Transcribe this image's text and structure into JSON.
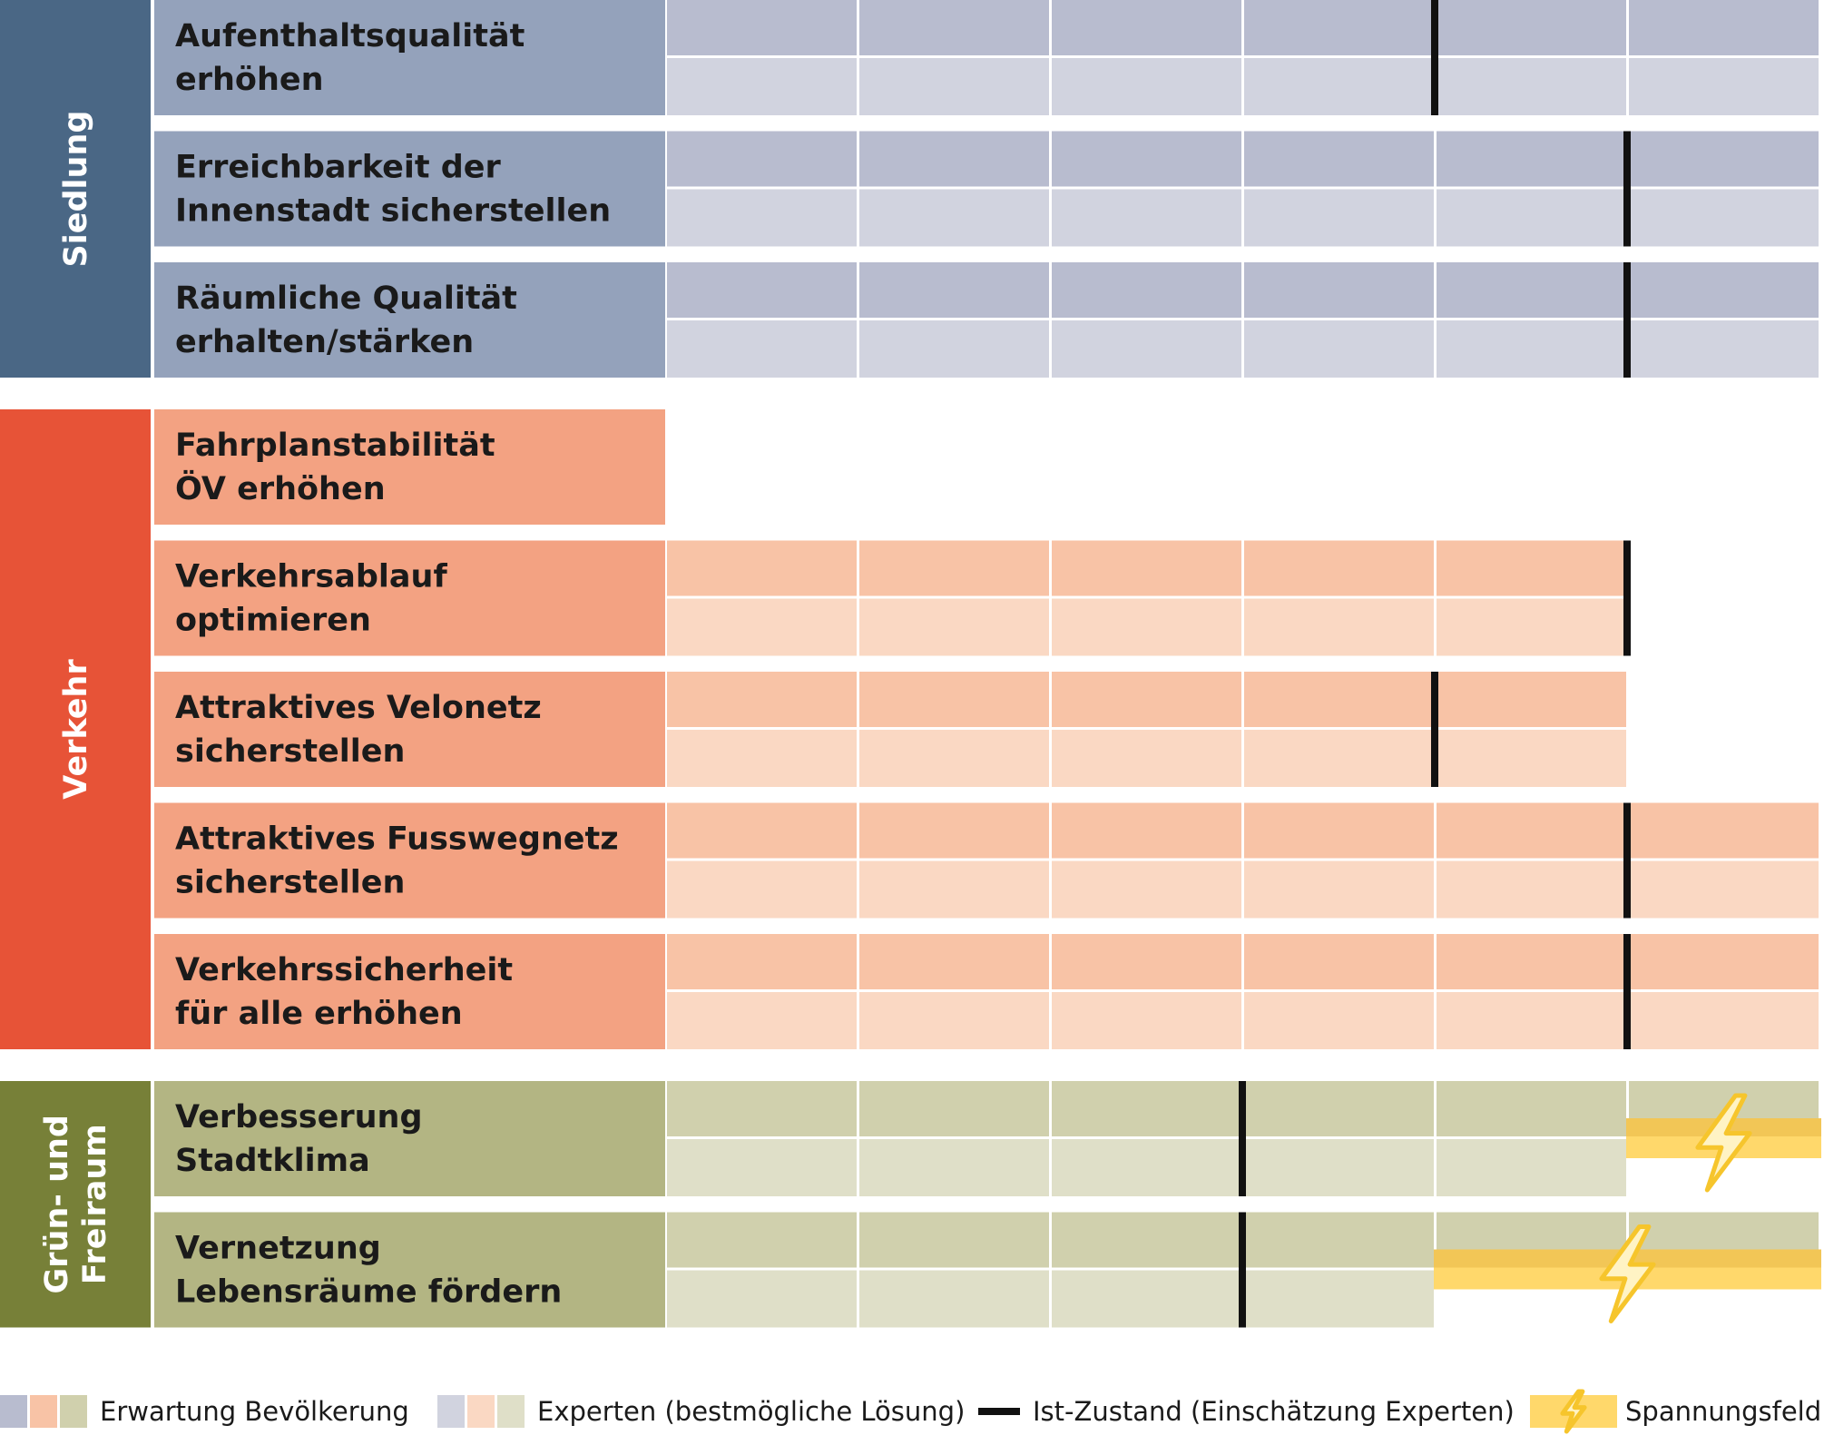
{
  "chart_data": {
    "type": "bar",
    "scale_steps": 6,
    "groups": [
      {
        "category": "Siedlung",
        "category_lines": [
          "Siedlung"
        ],
        "colors": {
          "label_band": "#4a6785",
          "goal_cell": "#94a2bb",
          "expectation": "#b8bccf",
          "expert": "#d1d3df"
        },
        "goals": [
          {
            "label_lines": [
              "Aufenthaltsqualität",
              "erhöhen"
            ],
            "expectation": 6,
            "expert": 6,
            "ist": 4,
            "spannung": null
          },
          {
            "label_lines": [
              "Erreichbarkeit der",
              "Innenstadt sicherstellen"
            ],
            "expectation": 6,
            "expert": 6,
            "ist": 5,
            "spannung": null
          },
          {
            "label_lines": [
              "Räumliche Qualität",
              "erhalten/stärken"
            ],
            "expectation": 6,
            "expert": 6,
            "ist": 5,
            "spannung": null
          }
        ]
      },
      {
        "category": "Verkehr",
        "category_lines": [
          "Verkehr"
        ],
        "colors": {
          "label_band": "#e75337",
          "goal_cell": "#f3a282",
          "expectation": "#f8c3a6",
          "expert": "#fad8c3"
        },
        "goals": [
          {
            "label_lines": [
              "Fahrplanstabilität",
              "ÖV erhöhen"
            ],
            "expectation": 0,
            "expert": 0,
            "ist": null,
            "spannung": null
          },
          {
            "label_lines": [
              "Verkehrsablauf",
              "optimieren"
            ],
            "expectation": 5,
            "expert": 5,
            "ist": 5,
            "spannung": null
          },
          {
            "label_lines": [
              "Attraktives Velonetz",
              "sicherstellen"
            ],
            "expectation": 5,
            "expert": 5,
            "ist": 4,
            "spannung": null
          },
          {
            "label_lines": [
              "Attraktives Fusswegnetz",
              "sicherstellen"
            ],
            "expectation": 6,
            "expert": 6,
            "ist": 5,
            "spannung": null
          },
          {
            "label_lines": [
              "Verkehrssicherheit",
              "für alle erhöhen"
            ],
            "expectation": 6,
            "expert": 6,
            "ist": 5,
            "spannung": null
          }
        ]
      },
      {
        "category": "Grün- und Freiraum",
        "category_lines": [
          "Grün- und",
          "Freiraum"
        ],
        "colors": {
          "label_band": "#778038",
          "goal_cell": "#b3b583",
          "expectation": "#d0d0ad",
          "expert": "#dfdfc8"
        },
        "goals": [
          {
            "label_lines": [
              "Verbesserung",
              "Stadtklima"
            ],
            "expectation": 6,
            "expert": 5,
            "ist": 3,
            "spannung": [
              5,
              6
            ]
          },
          {
            "label_lines": [
              "Vernetzung",
              "Lebensräume fördern"
            ],
            "expectation": 6,
            "expert": 4,
            "ist": 3,
            "spannung": [
              4,
              6
            ]
          }
        ]
      }
    ],
    "legend": {
      "position": "bottom",
      "items": [
        {
          "key": "expectation",
          "label": "Erwartung Bevölkerung",
          "swatch_colors": [
            "#b8bccf",
            "#f8c3a6",
            "#d0d0ad"
          ]
        },
        {
          "key": "expert",
          "label": "Experten (bestmögliche Lösung)",
          "swatch_colors": [
            "#d1d3df",
            "#fad8c3",
            "#dfdfc8"
          ]
        },
        {
          "key": "ist",
          "label": "Ist-Zustand (Einschätzung Experten)"
        },
        {
          "key": "spannung",
          "label": "Spannungsfeld"
        }
      ]
    },
    "colors": {
      "ist_marker": "#111111",
      "spannung_band": "#ffd86b",
      "spannung_stripe": "#f2c656",
      "lightning": "#f6c52c"
    }
  }
}
